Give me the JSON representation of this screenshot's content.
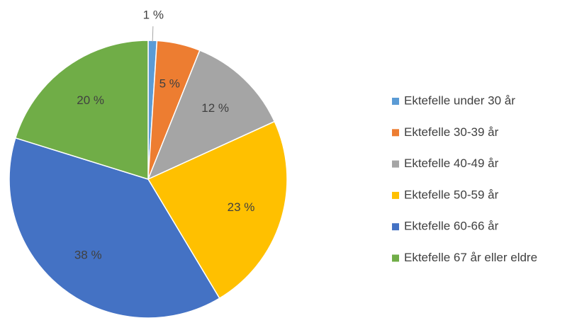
{
  "chart_data": {
    "type": "pie",
    "categories": [
      "Ektefelle under 30 år",
      "Ektefelle 30-39 år",
      "Ektefelle 40-49 år",
      "Ektefelle 50-59 år",
      "Ektefelle 60-66 år",
      "Ektefelle 67 år eller eldre"
    ],
    "values": [
      1,
      5,
      12,
      23,
      38,
      20
    ],
    "value_labels": [
      "1 %",
      "5 %",
      "12 %",
      "23 %",
      "38 %",
      "20 %"
    ],
    "colors": [
      "#5b9bd5",
      "#ed7d31",
      "#a5a5a5",
      "#ffc000",
      "#4472c4",
      "#70ad47"
    ],
    "legend": "right"
  }
}
